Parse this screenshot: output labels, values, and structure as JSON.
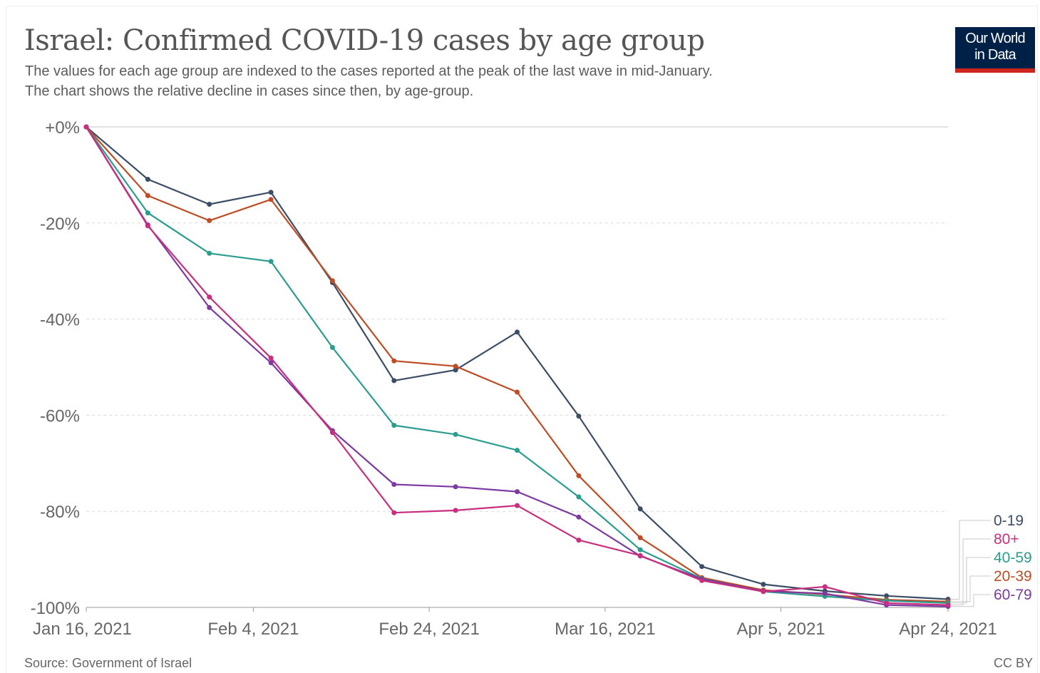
{
  "header": {
    "title": "Israel: Confirmed COVID-19 cases by age group",
    "subtitle_line1": "The values for each age group are indexed to the cases reported at the peak of the last wave in mid-January.",
    "subtitle_line2": "The chart shows the relative decline in cases since then, by age-group."
  },
  "logo": {
    "line1": "Our World",
    "line2": "in Data"
  },
  "footer": {
    "source": "Source: Government of Israel",
    "license": "CC BY"
  },
  "colors": {
    "0-19": "#3c4e66",
    "80+": "#c82f7e",
    "40-59": "#2a9d8f",
    "20-39": "#be4d25",
    "60-79": "#7d3ba2",
    "grid": "#d9d9d9",
    "axis": "#999999"
  },
  "chart_data": {
    "type": "line",
    "title": "Israel: Confirmed COVID-19 cases by age group",
    "xlabel": "",
    "ylabel": "",
    "ylim": [
      -100,
      0
    ],
    "y_ticks": [
      {
        "value": 0,
        "label": "+0%"
      },
      {
        "value": -20,
        "label": "-20%"
      },
      {
        "value": -40,
        "label": "-40%"
      },
      {
        "value": -60,
        "label": "-60%"
      },
      {
        "value": -80,
        "label": "-80%"
      },
      {
        "value": -100,
        "label": "-100%"
      }
    ],
    "x_ticks": [
      "Jan 16, 2021",
      "Feb 4, 2021",
      "Feb 24, 2021",
      "Mar 16, 2021",
      "Apr 5, 2021",
      "Apr 24, 2021"
    ],
    "x": [
      "2021-01-16",
      "2021-01-23",
      "2021-01-30",
      "2021-02-06",
      "2021-02-13",
      "2021-02-20",
      "2021-02-27",
      "2021-03-06",
      "2021-03-13",
      "2021-03-20",
      "2021-03-27",
      "2021-04-03",
      "2021-04-10",
      "2021-04-17",
      "2021-04-24"
    ],
    "grid": true,
    "legend": "right",
    "series": [
      {
        "name": "0-19",
        "values": [
          0,
          -10.9,
          -16.1,
          -13.6,
          -32.4,
          -52.8,
          -50.6,
          -42.7,
          -60.2,
          -79.5,
          -91.5,
          -95.2,
          -96.6,
          -97.6,
          -98.3
        ]
      },
      {
        "name": "20-39",
        "values": [
          0,
          -14.3,
          -19.5,
          -15.1,
          -32.0,
          -48.7,
          -49.8,
          -55.2,
          -72.6,
          -85.5,
          -93.8,
          -96.4,
          -97.3,
          -98.4,
          -98.8
        ]
      },
      {
        "name": "40-59",
        "values": [
          0,
          -17.9,
          -26.3,
          -28.0,
          -45.9,
          -62.1,
          -64.0,
          -67.3,
          -77.0,
          -88.0,
          -94.0,
          -96.7,
          -97.7,
          -98.6,
          -99.1
        ]
      },
      {
        "name": "60-79",
        "values": [
          0,
          -20.4,
          -37.6,
          -49.1,
          -63.2,
          -74.4,
          -74.9,
          -75.9,
          -81.2,
          -89.3,
          -94.1,
          -96.6,
          -97.1,
          -99.5,
          -99.8
        ]
      },
      {
        "name": "80+",
        "values": [
          0,
          -20.6,
          -35.4,
          -48.1,
          -63.6,
          -80.3,
          -79.8,
          -78.8,
          -86.0,
          -89.2,
          -94.4,
          -96.7,
          -95.7,
          -99.1,
          -99.5
        ]
      }
    ],
    "legend_order": [
      "0-19",
      "80+",
      "40-59",
      "20-39",
      "60-79"
    ]
  }
}
